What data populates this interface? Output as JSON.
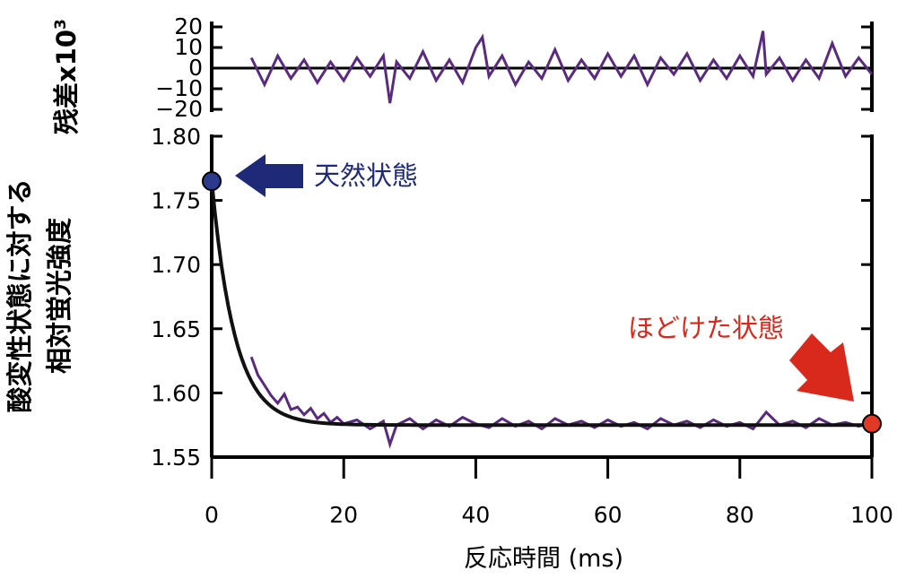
{
  "colors": {
    "data": "#5a2a7e",
    "fit": "#111111",
    "native": "#1e2a78",
    "unfolded": "#d9281c"
  },
  "chart_data": [
    {
      "type": "line",
      "panel": "residual",
      "ylabel_main": "残差x10",
      "ylabel_exp": "3",
      "xlim": [
        0,
        100
      ],
      "ylim": [
        -20,
        20
      ],
      "yticks": [
        20,
        10,
        0,
        -10,
        -20
      ],
      "ytick_labels": [
        "20",
        "10",
        "0",
        "−10",
        "−20"
      ],
      "zero_line": true,
      "series": [
        {
          "x": [
            6,
            8,
            10,
            12,
            14,
            16,
            18,
            20,
            22,
            24,
            26,
            27,
            28,
            30,
            32,
            34,
            36,
            38,
            40,
            41,
            42,
            44,
            46,
            48,
            50,
            52,
            54,
            56,
            58,
            60,
            62,
            64,
            66,
            68,
            70,
            72,
            74,
            76,
            78,
            80,
            82,
            83.5,
            84,
            86,
            88,
            90,
            92,
            94,
            96,
            98,
            100
          ],
          "y": [
            5,
            -8,
            6,
            -5,
            4,
            -7,
            3,
            -6,
            5,
            -4,
            6,
            -17,
            3,
            -5,
            8,
            -6,
            4,
            -7,
            10,
            15,
            -4,
            6,
            -8,
            3,
            -5,
            9,
            -6,
            4,
            -5,
            7,
            -4,
            6,
            -8,
            5,
            -3,
            7,
            -6,
            4,
            -5,
            6,
            -4,
            18,
            -3,
            5,
            -6,
            4,
            -5,
            12,
            -4,
            5,
            -3
          ]
        }
      ]
    },
    {
      "type": "line",
      "panel": "main",
      "ylabel_lines": [
        "酸変性状態に対する",
        "相対蛍光強度"
      ],
      "xlabel": "反応時間 (ms)",
      "xlim": [
        0,
        100
      ],
      "ylim": [
        1.55,
        1.8
      ],
      "xticks": [
        0,
        20,
        40,
        60,
        80,
        100
      ],
      "xtick_labels": [
        "0",
        "20",
        "40",
        "60",
        "80",
        "100"
      ],
      "yticks": [
        1.55,
        1.6,
        1.65,
        1.7,
        1.75,
        1.8
      ],
      "ytick_labels": [
        "1.55",
        "1.60",
        "1.65",
        "1.70",
        "1.75",
        "1.80"
      ],
      "fit": {
        "y_start": 1.765,
        "y_end": 1.575,
        "tau": 3.5
      },
      "series": [
        {
          "x": [
            6,
            7,
            8,
            9,
            10,
            11,
            12,
            13,
            14,
            15,
            16,
            17,
            18,
            19,
            20,
            22,
            24,
            26,
            27,
            28,
            30,
            32,
            34,
            36,
            38,
            40,
            42,
            44,
            46,
            48,
            50,
            52,
            54,
            56,
            58,
            60,
            62,
            64,
            66,
            68,
            70,
            72,
            74,
            76,
            78,
            80,
            82,
            84,
            86,
            88,
            90,
            92,
            94,
            96,
            98,
            100
          ],
          "y": [
            1.628,
            1.614,
            1.606,
            1.598,
            1.592,
            1.599,
            1.587,
            1.589,
            1.583,
            1.588,
            1.58,
            1.584,
            1.577,
            1.581,
            1.576,
            1.579,
            1.572,
            1.578,
            1.56,
            1.575,
            1.58,
            1.572,
            1.579,
            1.574,
            1.581,
            1.576,
            1.573,
            1.58,
            1.574,
            1.578,
            1.572,
            1.58,
            1.575,
            1.578,
            1.573,
            1.579,
            1.574,
            1.577,
            1.572,
            1.58,
            1.575,
            1.578,
            1.573,
            1.579,
            1.574,
            1.577,
            1.572,
            1.585,
            1.575,
            1.578,
            1.573,
            1.58,
            1.575,
            1.577,
            1.574,
            1.577
          ]
        }
      ],
      "markers": [
        {
          "label": "天然状態",
          "x": 0,
          "y": 1.765,
          "color": "#1e2a78"
        },
        {
          "label": "ほどけた状態",
          "x": 100,
          "y": 1.576,
          "color": "#d9281c"
        }
      ]
    }
  ]
}
